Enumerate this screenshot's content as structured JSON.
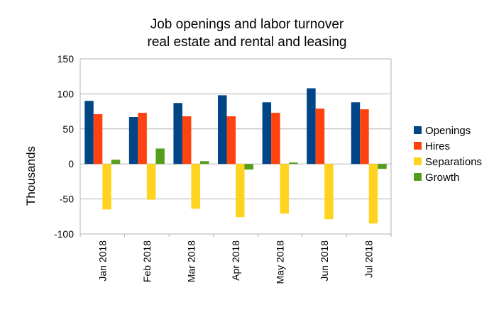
{
  "chart_data": {
    "type": "bar",
    "title_lines": [
      "Job openings and labor turnover",
      "real estate and rental and leasing"
    ],
    "xlabel": "",
    "ylabel": "Thousands",
    "categories": [
      "Jan 2018",
      "Feb 2018",
      "Mar 2018",
      "Apr 2018",
      "May 2018",
      "Jun 2018",
      "Jul 2018"
    ],
    "series": [
      {
        "name": "Openings",
        "color": "#004586",
        "values": [
          90,
          67,
          87,
          98,
          88,
          108,
          88
        ]
      },
      {
        "name": "Hires",
        "color": "#ff420e",
        "values": [
          71,
          73,
          68,
          68,
          73,
          79,
          78
        ]
      },
      {
        "name": "Separations",
        "color": "#ffd320",
        "values": [
          -65,
          -51,
          -64,
          -76,
          -71,
          -79,
          -85
        ]
      },
      {
        "name": "Growth",
        "color": "#579d1c",
        "values": [
          6,
          22,
          4,
          -8,
          2,
          0,
          -7
        ]
      }
    ],
    "ylim": [
      -100,
      150
    ],
    "yticks": [
      -100,
      -50,
      0,
      50,
      100,
      150
    ],
    "ytick_labels": [
      "-100",
      "-50",
      "0",
      "50",
      "100",
      "150"
    ],
    "grid": true,
    "legend_position": "right"
  }
}
